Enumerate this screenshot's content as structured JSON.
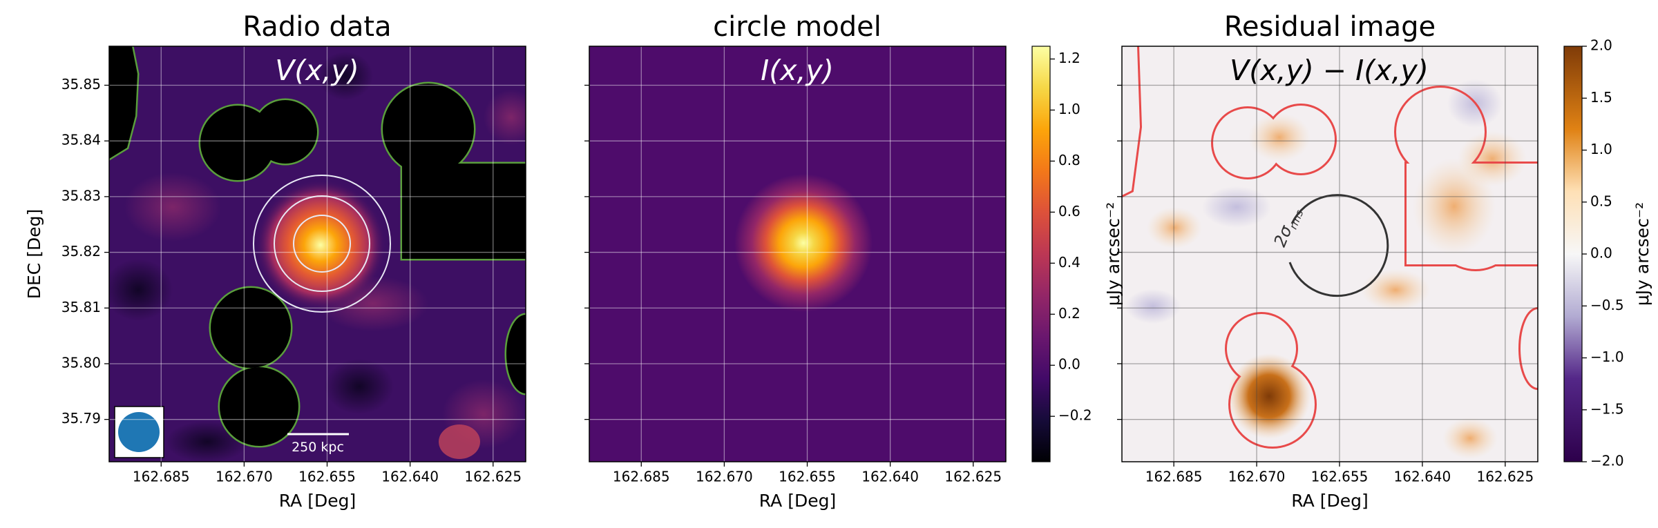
{
  "chart_data": [
    {
      "type": "image",
      "title": "Radio data",
      "annotation": "V(x,y)",
      "scale_bar": "250 kpc",
      "xlabel": "RA [Deg]",
      "ylabel": "DEC [Deg]",
      "xlim": [
        162.6944,
        162.6191
      ],
      "ylim": [
        35.7824,
        35.857
      ],
      "xticks": [
        162.685,
        {
          "value": 162.67,
          "label": "162.670"
        },
        162.655,
        {
          "value": 162.64,
          "label": "162.640"
        },
        162.625
      ],
      "yticks": [
        35.79,
        {
          "value": 35.8,
          "label": "35.80"
        },
        35.81,
        35.82,
        35.83,
        35.84,
        35.85
      ],
      "ytick_labels": true,
      "grid": true,
      "grid_color": "#ffffff"
    },
    {
      "type": "image",
      "title": "circle model",
      "annotation": "I(x,y)",
      "xlabel": "RA [Deg]",
      "xlim": [
        162.6944,
        162.6191
      ],
      "ylim": [
        35.7824,
        35.857
      ],
      "xticks": [
        162.685,
        {
          "value": 162.67,
          "label": "162.670"
        },
        162.655,
        {
          "value": 162.64,
          "label": "162.640"
        },
        162.625
      ],
      "yticks": [
        35.79,
        {
          "value": 35.8,
          "label": "35.80"
        },
        35.81,
        35.82,
        35.83,
        35.84,
        35.85
      ],
      "ytick_labels": false,
      "grid": true,
      "grid_color": "#ffffff",
      "colorbar": {
        "colormap": "inferno",
        "clim": [
          -0.378,
          1.25
        ],
        "label": "μJy arcsec⁻²",
        "ticks": [
          {
            "value": -0.2,
            "label": "−0.2"
          },
          {
            "value": 0,
            "label": "0.0"
          },
          0.2,
          0.4,
          0.6,
          0.8,
          {
            "value": 1,
            "label": "1.0"
          },
          1.2
        ]
      }
    },
    {
      "type": "image",
      "title": "Residual image",
      "annotation": "V(x,y) − I(x,y)",
      "circle_label": [
        "2σ",
        "rms"
      ],
      "xlabel": "RA [Deg]",
      "xlim": [
        162.6944,
        162.6191
      ],
      "ylim": [
        35.7824,
        35.857
      ],
      "xticks": [
        162.685,
        {
          "value": 162.67,
          "label": "162.670"
        },
        162.655,
        {
          "value": 162.64,
          "label": "162.640"
        },
        162.625
      ],
      "yticks": [
        35.79,
        {
          "value": 35.8,
          "label": "35.80"
        },
        35.81,
        35.82,
        35.83,
        35.84,
        35.85
      ],
      "ytick_labels": false,
      "grid": true,
      "grid_color": "#444444",
      "colorbar": {
        "colormap": "PuOr_r",
        "clim": [
          -2,
          2
        ],
        "label": "μJy arcsec⁻²",
        "ticks": [
          {
            "value": -2,
            "label": "−2.0"
          },
          {
            "value": -1.5,
            "label": "−1.5"
          },
          {
            "value": -1,
            "label": "−1.0"
          },
          {
            "value": -0.5,
            "label": "−0.5"
          },
          {
            "value": 0,
            "label": "0.0"
          },
          0.5,
          {
            "value": 1,
            "label": "1.0"
          },
          1.5,
          {
            "value": 2,
            "label": "2.0"
          }
        ]
      }
    }
  ]
}
